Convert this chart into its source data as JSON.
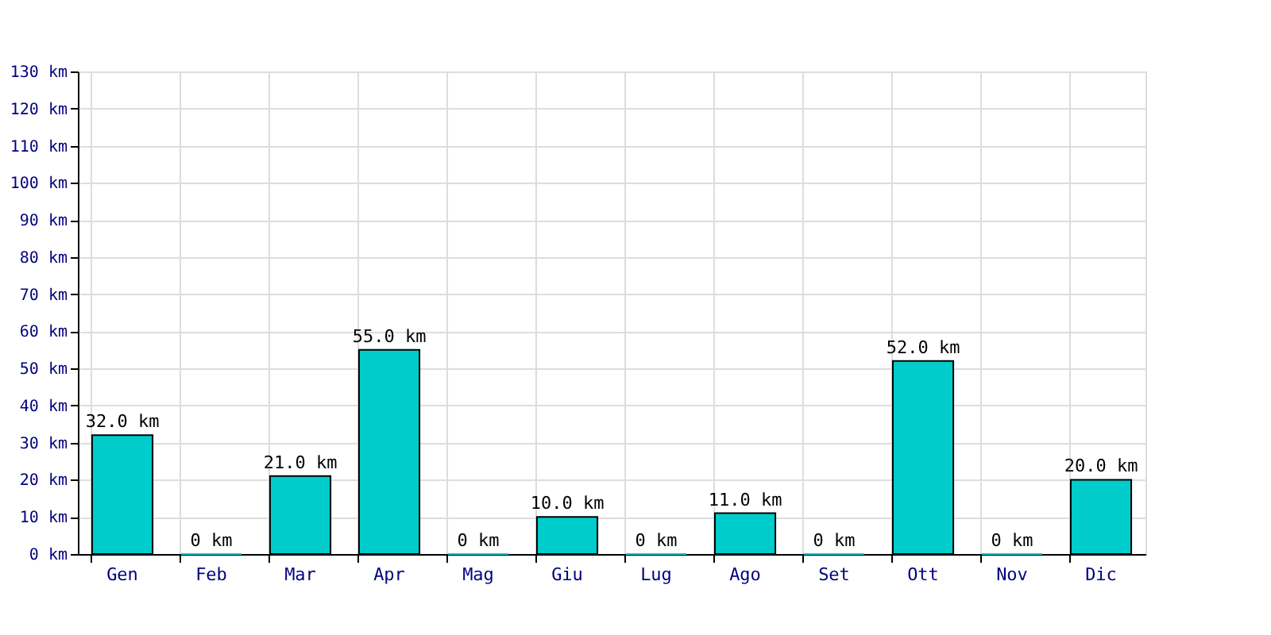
{
  "chart_data": {
    "type": "bar",
    "categories": [
      "Gen",
      "Feb",
      "Mar",
      "Apr",
      "Mag",
      "Giu",
      "Lug",
      "Ago",
      "Set",
      "Ott",
      "Nov",
      "Dic"
    ],
    "values": [
      32,
      0,
      21,
      55,
      0,
      10,
      0,
      11,
      0,
      52,
      0,
      20
    ],
    "value_labels": [
      "32.0 km",
      "0 km",
      "21.0 km",
      "55.0 km",
      "0 km",
      "10.0 km",
      "0 km",
      "11.0 km",
      "0 km",
      "52.0 km",
      "0 km",
      "20.0 km"
    ],
    "color": "#00cccc",
    "ylim": [
      0,
      130
    ],
    "yticks": [
      {
        "value": 0,
        "label": "0 km"
      },
      {
        "value": 10,
        "label": "10 km"
      },
      {
        "value": 20,
        "label": "20 km"
      },
      {
        "value": 30,
        "label": "30 km"
      },
      {
        "value": 40,
        "label": "40 km"
      },
      {
        "value": 50,
        "label": "50 km"
      },
      {
        "value": 60,
        "label": "60 km"
      },
      {
        "value": 70,
        "label": "70 km"
      },
      {
        "value": 80,
        "label": "80 km"
      },
      {
        "value": 90,
        "label": "90 km"
      },
      {
        "value": 100,
        "label": "100 km"
      },
      {
        "value": 110,
        "label": "110 km"
      },
      {
        "value": 120,
        "label": "120 km"
      },
      {
        "value": 130,
        "label": "130 km"
      }
    ],
    "grid": true
  }
}
